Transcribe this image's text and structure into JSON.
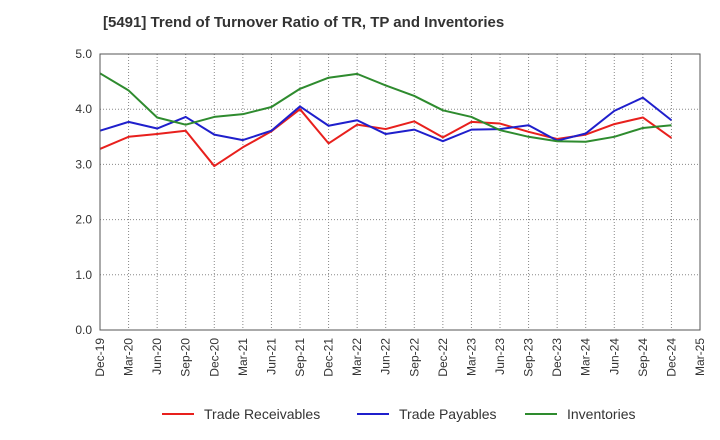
{
  "chart_data": {
    "type": "line",
    "title": "[5491]  Trend of Turnover Ratio of TR, TP and Inventories",
    "xlabel": "",
    "ylabel": "",
    "ylim": [
      0,
      5
    ],
    "yticks": [
      "0.0",
      "1.0",
      "2.0",
      "3.0",
      "4.0",
      "5.0"
    ],
    "x": [
      "Dec-19",
      "Mar-20",
      "Jun-20",
      "Sep-20",
      "Dec-20",
      "Mar-21",
      "Jun-21",
      "Sep-21",
      "Dec-21",
      "Mar-22",
      "Jun-22",
      "Sep-22",
      "Dec-22",
      "Mar-23",
      "Jun-23",
      "Sep-23",
      "Dec-23",
      "Mar-24",
      "Jun-24",
      "Sep-24",
      "Dec-24"
    ],
    "xtick_labels": [
      "Dec-19",
      "Mar-20",
      "Jun-20",
      "Sep-20",
      "Dec-20",
      "Mar-21",
      "Jun-21",
      "Sep-21",
      "Dec-21",
      "Mar-22",
      "Jun-22",
      "Sep-22",
      "Dec-22",
      "Mar-23",
      "Jun-23",
      "Sep-23",
      "Dec-23",
      "Mar-24",
      "Jun-24",
      "Sep-24",
      "Dec-24",
      "Mar-25"
    ],
    "grid": true,
    "legend_position": "bottom",
    "series": [
      {
        "name": "Trade Receivables",
        "color": "#e8201d",
        "values": [
          3.28,
          3.5,
          3.55,
          3.61,
          2.97,
          3.31,
          3.6,
          4.0,
          3.38,
          3.72,
          3.64,
          3.78,
          3.49,
          3.77,
          3.74,
          3.59,
          3.46,
          3.54,
          3.73,
          3.85,
          3.48
        ]
      },
      {
        "name": "Trade Payables",
        "color": "#1f1fcc",
        "values": [
          3.61,
          3.77,
          3.65,
          3.86,
          3.54,
          3.44,
          3.61,
          4.05,
          3.7,
          3.8,
          3.55,
          3.63,
          3.42,
          3.63,
          3.64,
          3.71,
          3.43,
          3.56,
          3.97,
          4.21,
          3.8
        ]
      },
      {
        "name": "Inventories",
        "color": "#2e8b2e",
        "values": [
          4.65,
          4.34,
          3.85,
          3.72,
          3.86,
          3.91,
          4.04,
          4.37,
          4.57,
          4.64,
          4.43,
          4.24,
          3.98,
          3.86,
          3.62,
          3.5,
          3.42,
          3.41,
          3.5,
          3.66,
          3.71
        ]
      }
    ]
  }
}
